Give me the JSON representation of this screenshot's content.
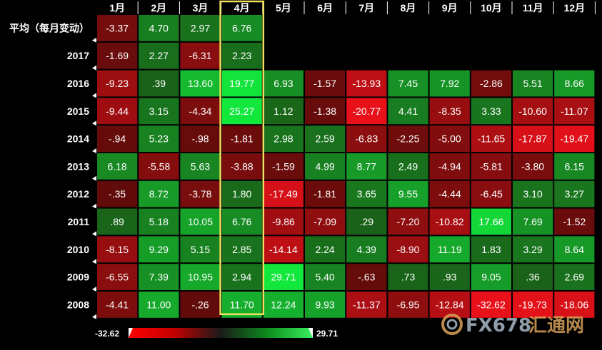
{
  "chart_data": {
    "type": "heatmap",
    "months": [
      "1月",
      "2月",
      "3月",
      "4月",
      "5月",
      "6月",
      "7月",
      "8月",
      "9月",
      "10月",
      "11月",
      "12月"
    ],
    "rows": [
      {
        "label": "平均（每月变动）",
        "values": [
          "-3.37",
          "4.70",
          "2.97",
          "6.76"
        ]
      },
      {
        "label": "2017",
        "values": [
          "-1.69",
          "2.27",
          "-6.31",
          "2.23"
        ]
      },
      {
        "label": "2016",
        "values": [
          "-9.23",
          ".39",
          "13.60",
          "19.77",
          "6.93",
          "-1.57",
          "-13.93",
          "7.45",
          "7.92",
          "-2.86",
          "5.51",
          "8.66"
        ]
      },
      {
        "label": "2015",
        "values": [
          "-9.44",
          "3.15",
          "-4.34",
          "25.27",
          "1.12",
          "-1.38",
          "-20.77",
          "4.41",
          "-8.35",
          "3.33",
          "-10.60",
          "-11.07"
        ]
      },
      {
        "label": "2014",
        "values": [
          "-.94",
          "5.23",
          "-.98",
          "-1.81",
          "2.98",
          "2.59",
          "-6.83",
          "-2.25",
          "-5.00",
          "-11.65",
          "-17.87",
          "-19.47"
        ]
      },
      {
        "label": "2013",
        "values": [
          "6.18",
          "-5.58",
          "5.63",
          "-3.88",
          "-1.59",
          "4.99",
          "8.77",
          "2.49",
          "-4.94",
          "-5.81",
          "-3.80",
          "6.15"
        ]
      },
      {
        "label": "2012",
        "values": [
          "-.35",
          "8.72",
          "-3.78",
          "1.80",
          "-17.49",
          "-1.81",
          "3.65",
          "9.55",
          "-4.44",
          "-6.45",
          "3.10",
          "3.27"
        ]
      },
      {
        "label": "2011",
        "values": [
          ".89",
          "5.18",
          "10.05",
          "6.76",
          "-9.86",
          "-7.09",
          ".29",
          "-7.20",
          "-10.82",
          "17.66",
          "7.69",
          "-1.52"
        ]
      },
      {
        "label": "2010",
        "values": [
          "-8.15",
          "9.29",
          "5.15",
          "2.85",
          "-14.14",
          "2.24",
          "4.39",
          "-8.90",
          "11.19",
          "1.83",
          "3.29",
          "8.64"
        ]
      },
      {
        "label": "2009",
        "values": [
          "-6.55",
          "7.39",
          "10.95",
          "2.94",
          "29.71",
          "5.40",
          "-.63",
          ".73",
          ".93",
          "9.05",
          ".36",
          "2.69"
        ]
      },
      {
        "label": "2008",
        "values": [
          "-4.41",
          "11.00",
          "-.26",
          "11.70",
          "12.24",
          "9.93",
          "-11.37",
          "-6.95",
          "-12.84",
          "-32.62",
          "-19.73",
          "-18.06"
        ]
      }
    ],
    "legend": {
      "min": "-32.62",
      "max": "29.71"
    },
    "highlight_month": "4月",
    "colors": {
      "negative": "#e8111a",
      "neutral": "#3a1208",
      "positive": "#12e83c",
      "highlight": "#f1e15f"
    }
  },
  "watermark": {
    "text": "FX678",
    "text_cn": "汇通网"
  }
}
